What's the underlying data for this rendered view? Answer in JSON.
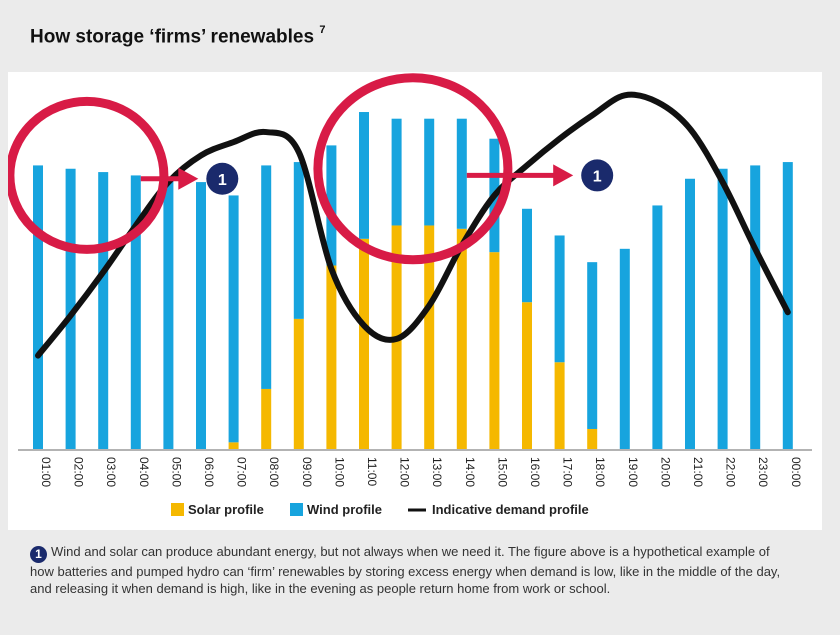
{
  "title": "How storage ‘firms’ renewables",
  "title_sup": "7",
  "chart_data": {
    "type": "bar",
    "categories": [
      "01:00",
      "02:00",
      "03:00",
      "04:00",
      "05:00",
      "06:00",
      "07:00",
      "08:00",
      "09:00",
      "10:00",
      "11:00",
      "12:00",
      "13:00",
      "14:00",
      "15:00",
      "16:00",
      "17:00",
      "18:00",
      "19:00",
      "20:00",
      "21:00",
      "22:00",
      "23:00",
      "00:00"
    ],
    "stacked": true,
    "series": [
      {
        "name": "Solar profile",
        "color": "#f5b800",
        "values": [
          0,
          0,
          0,
          0,
          0,
          0,
          2,
          18,
          39,
          55,
          63,
          67,
          67,
          66,
          59,
          44,
          26,
          6,
          0,
          0,
          0,
          0,
          0,
          0
        ]
      },
      {
        "name": "Wind profile",
        "color": "#17a4de",
        "values": [
          85,
          84,
          83,
          82,
          81,
          80,
          74,
          67,
          47,
          36,
          38,
          32,
          32,
          33,
          34,
          28,
          38,
          50,
          60,
          73,
          81,
          84,
          85,
          86
        ]
      }
    ],
    "line": {
      "name": "Indicative demand profile",
      "color": "#111111",
      "values": [
        28,
        40,
        53,
        67,
        80,
        88,
        92,
        95,
        89,
        54,
        37,
        33,
        43,
        61,
        76,
        85,
        93,
        100,
        106,
        104,
        96,
        80,
        60,
        41
      ]
    },
    "ylim": [
      0,
      110
    ],
    "legend_position": "bottom",
    "annotations": {
      "circles": [
        {
          "center_x": "02:30",
          "level": 82
        },
        {
          "center_x": "12:30",
          "level": 84
        }
      ],
      "arrows": [
        {
          "from": "04:00",
          "to": "06:30",
          "level": 81,
          "badge": "1"
        },
        {
          "from": "14:00",
          "to": "18:00",
          "level": 82,
          "badge": "1"
        }
      ]
    },
    "colors": {
      "circle": "#d81b46",
      "badge": "#1a2a6c"
    }
  },
  "footnote": {
    "badge": "1",
    "text": "Wind and solar can produce abundant energy, but not always when we need it. The figure above is a hypothetical example of how batteries and pumped hydro can ‘firm’ renewables by storing excess energy when demand is low, like in the middle of the day, and releasing it when demand is high, like in the evening as people return home from work or school."
  }
}
